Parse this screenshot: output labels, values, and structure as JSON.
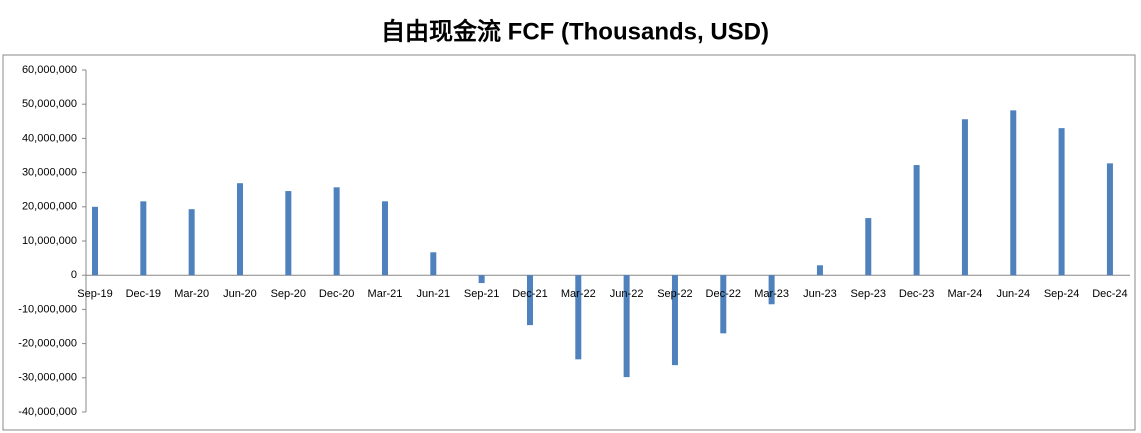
{
  "chart_data": {
    "type": "bar",
    "title": "自由现金流 FCF (Thousands, USD)",
    "categories": [
      "Sep-19",
      "Dec-19",
      "Mar-20",
      "Jun-20",
      "Sep-20",
      "Dec-20",
      "Mar-21",
      "Jun-21",
      "Sep-21",
      "Dec-21",
      "Mar-22",
      "Jun-22",
      "Sep-22",
      "Dec-22",
      "Mar-23",
      "Jun-23",
      "Sep-23",
      "Dec-23",
      "Mar-24",
      "Jun-24",
      "Sep-24",
      "Dec-24"
    ],
    "values": [
      20000000,
      21600000,
      19300000,
      26900000,
      24600000,
      25700000,
      21600000,
      6700000,
      -2300000,
      -14600000,
      -24600000,
      -29800000,
      -26300000,
      -17000000,
      -8500000,
      2900000,
      16700000,
      32200000,
      45600000,
      48200000,
      43000000,
      32700000
    ],
    "color": "#4f81bd",
    "ylim": [
      -40000000,
      60000000
    ],
    "yticks": [
      {
        "value": -40000000,
        "label": "-40,000,000"
      },
      {
        "value": -30000000,
        "label": "-30,000,000"
      },
      {
        "value": -20000000,
        "label": "-20,000,000"
      },
      {
        "value": -10000000,
        "label": "-10,000,000"
      },
      0,
      {
        "value": 10000000,
        "label": "10,000,000"
      },
      {
        "value": 20000000,
        "label": "20,000,000"
      },
      {
        "value": 30000000,
        "label": "30,000,000"
      },
      {
        "value": 40000000,
        "label": "40,000,000"
      },
      {
        "value": 50000000,
        "label": "50,000,000"
      },
      {
        "value": 60000000,
        "label": "60,000,000"
      }
    ]
  }
}
